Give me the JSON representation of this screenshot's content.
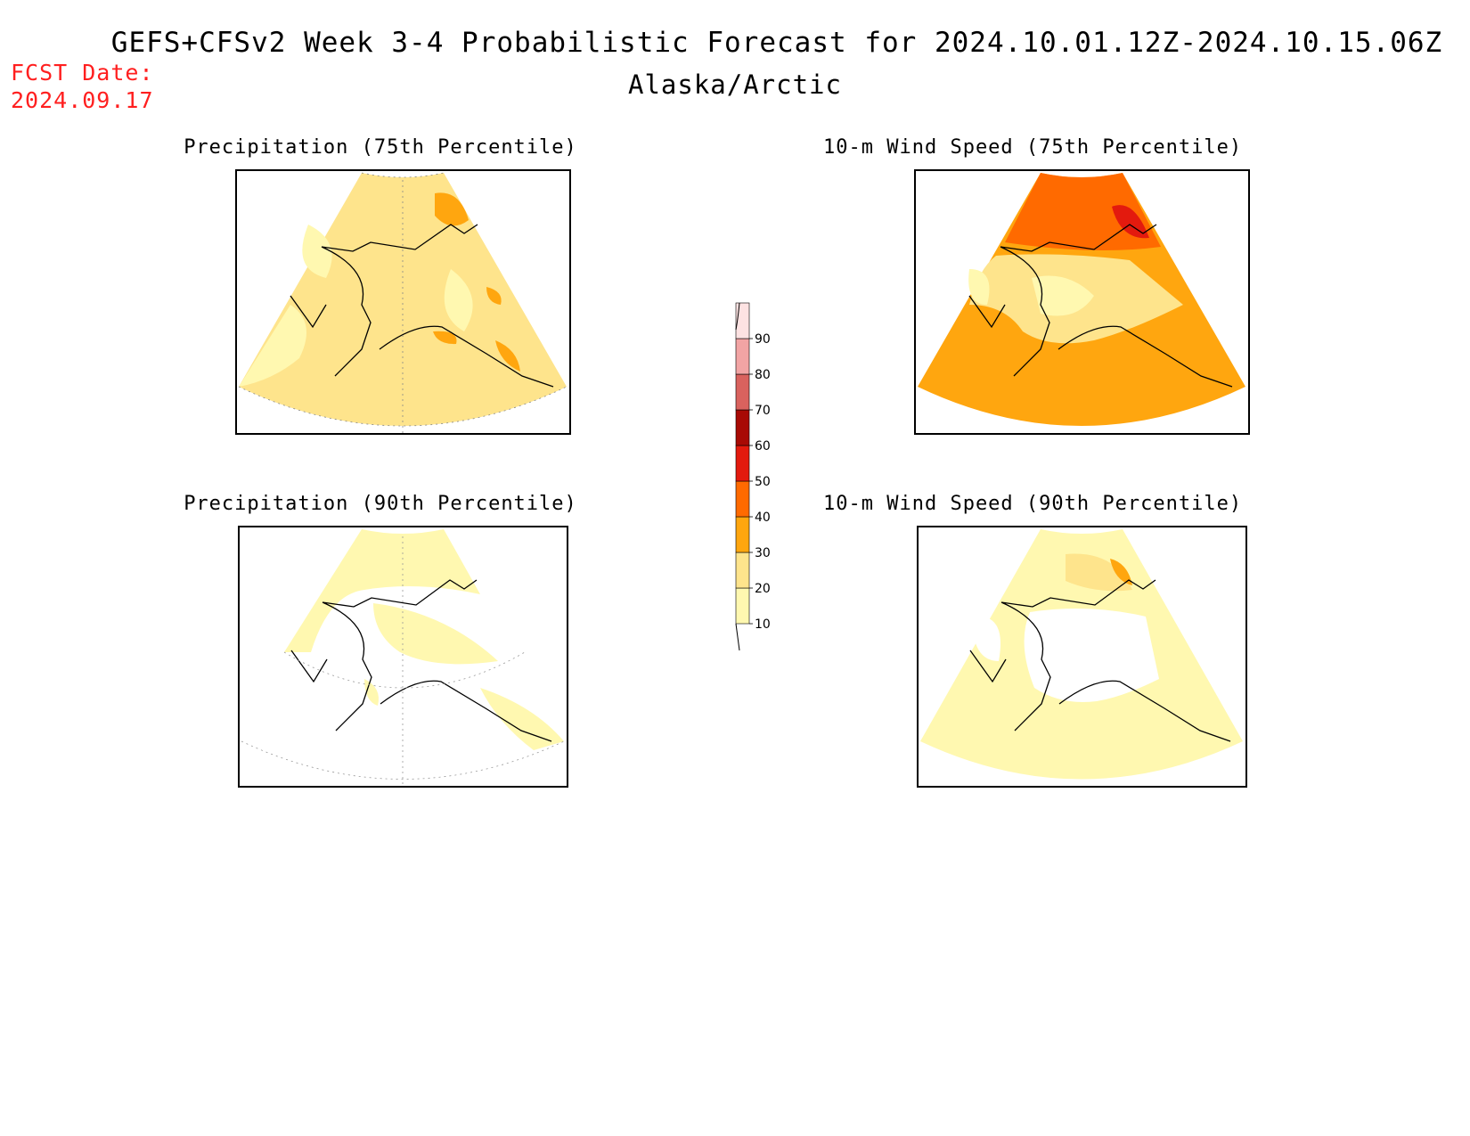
{
  "header": {
    "title": "GEFS+CFSv2 Week 3-4 Probabilistic Forecast for 2024.10.01.12Z-2024.10.15.06Z",
    "region": "Alaska/Arctic",
    "fcst_label": "FCST Date:",
    "fcst_date": "2024.09.17"
  },
  "panels": [
    {
      "id": "precip75",
      "title": "Precipitation (75th Percentile)",
      "dominant_fill": "#fee48c",
      "level": "20-30"
    },
    {
      "id": "wind75",
      "title": "10-m Wind Speed (75th Percentile)",
      "dominant_fill": "#ffa60f",
      "level": "30-40"
    },
    {
      "id": "precip90",
      "title": "Precipitation (90th Percentile)",
      "dominant_fill": "#ffffff",
      "level": "<10"
    },
    {
      "id": "wind90",
      "title": "10-m Wind Speed (90th Percentile)",
      "dominant_fill": "#fff8b0",
      "level": "10-20"
    }
  ],
  "colorbar": {
    "ticks": [
      "10",
      "20",
      "30",
      "40",
      "50",
      "60",
      "70",
      "80",
      "90"
    ],
    "colors": [
      "#fff8b0",
      "#fee48c",
      "#ffa60f",
      "#ff6a00",
      "#e31a0e",
      "#a80a05",
      "#d9625e",
      "#f2a4a4",
      "#fde2e2"
    ]
  }
}
